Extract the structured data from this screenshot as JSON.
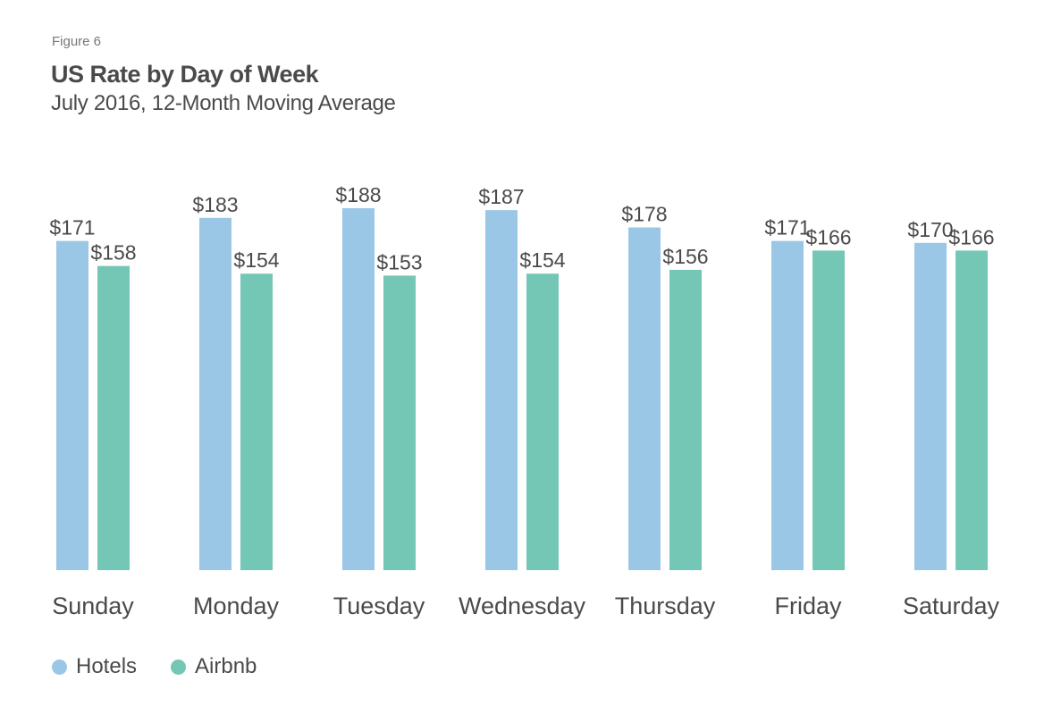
{
  "figure_label": "Figure 6",
  "colors": {
    "hotels": "#9bc7e6",
    "airbnb": "#74c7b4",
    "text": "#4a4a4a"
  },
  "chart_data": {
    "type": "bar",
    "title": "US Rate by Day of Week",
    "subtitle": "July 2016, 12-Month Moving Average",
    "xlabel": "",
    "ylabel": "",
    "ylim": [
      0,
      188
    ],
    "grid": false,
    "legend_position": "bottom-left",
    "categories": [
      "Sunday",
      "Monday",
      "Tuesday",
      "Wednesday",
      "Thursday",
      "Friday",
      "Saturday"
    ],
    "series": [
      {
        "name": "Hotels",
        "color": "#9bc7e6",
        "values": [
          171,
          183,
          188,
          187,
          178,
          171,
          170
        ],
        "labels": [
          "$171",
          "$183",
          "$188",
          "$187",
          "$178",
          "$171",
          "$170"
        ]
      },
      {
        "name": "Airbnb",
        "color": "#74c7b4",
        "values": [
          158,
          154,
          153,
          154,
          156,
          166,
          166
        ],
        "labels": [
          "$158",
          "$154",
          "$153",
          "$154",
          "$156",
          "$166",
          "$166"
        ]
      }
    ]
  }
}
